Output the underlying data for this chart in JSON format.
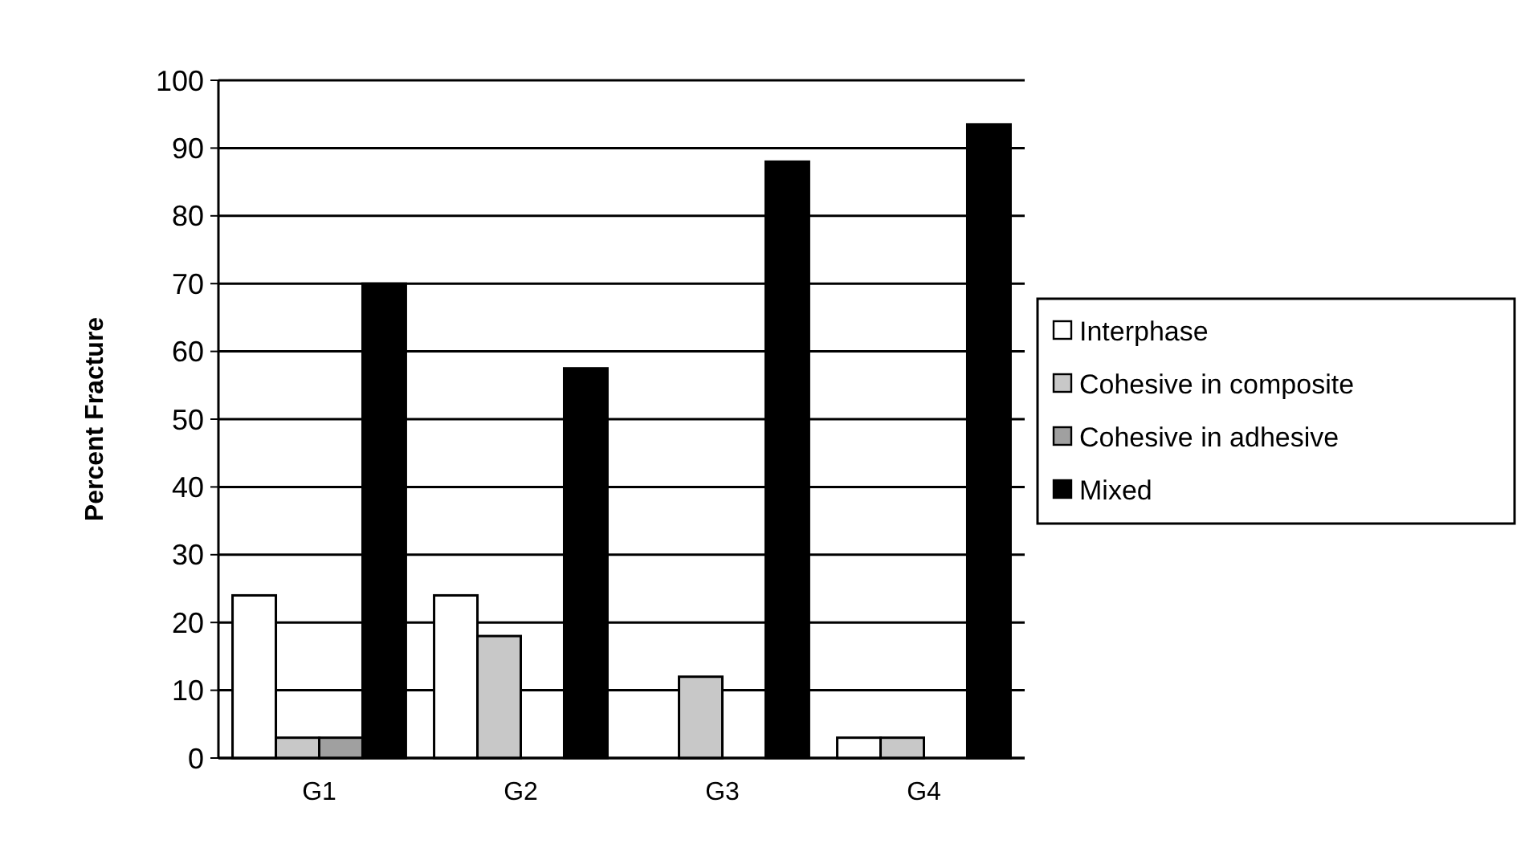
{
  "chart_data": {
    "type": "bar",
    "ylabel": "Percent Fracture",
    "categories": [
      "G1",
      "G2",
      "G3",
      "G4"
    ],
    "series": [
      {
        "name": "Interphase",
        "color": "#ffffff",
        "values": [
          24,
          24,
          0,
          3
        ]
      },
      {
        "name": "Cohesive in composite",
        "color": "#c8c8c8",
        "values": [
          3,
          18,
          12,
          3
        ]
      },
      {
        "name": "Cohesive in adhesive",
        "color": "#a0a0a0",
        "values": [
          3,
          0,
          0,
          0
        ]
      },
      {
        "name": "Mixed",
        "color": "#000000",
        "values": [
          70,
          57.5,
          88,
          93.5
        ]
      }
    ],
    "ylim": [
      0,
      100
    ],
    "yticks": [
      0,
      10,
      20,
      30,
      40,
      50,
      60,
      70,
      80,
      90,
      100
    ],
    "grid": "y",
    "legend": "right"
  }
}
